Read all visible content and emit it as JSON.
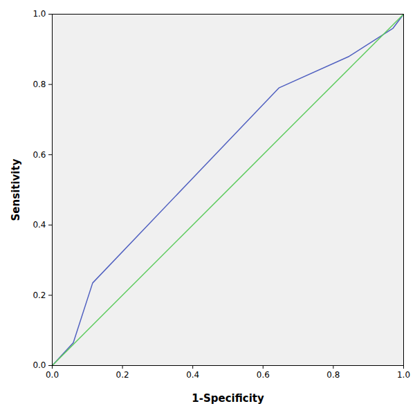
{
  "chart_data": {
    "type": "line",
    "x_label": "1-Specificity",
    "y_label": "Sensitivity",
    "x": [
      0,
      0.06,
      0.115,
      0.645,
      0.845,
      0.97,
      1
    ],
    "series": [
      {
        "color": "#5060c0",
        "values": [
          0,
          0.065,
          0.235,
          0.79,
          0.88,
          0.96,
          1
        ]
      },
      {
        "color": "#5ccb5c",
        "values": [
          0,
          0.06,
          0.115,
          0.645,
          0.845,
          0.97,
          1
        ]
      }
    ],
    "xlim": [
      0,
      1
    ],
    "ylim": [
      0,
      1
    ],
    "xticks": [
      {
        "value": 0,
        "label": "0.0"
      },
      {
        "value": 0.2,
        "label": "0.2"
      },
      {
        "value": 0.4,
        "label": "0.4"
      },
      {
        "value": 0.6,
        "label": "0.6"
      },
      {
        "value": 0.8,
        "label": "0.8"
      },
      {
        "value": 1,
        "label": "1.0"
      }
    ],
    "yticks": [
      {
        "value": 0,
        "label": "0.0"
      },
      {
        "value": 0.2,
        "label": "0.2"
      },
      {
        "value": 0.4,
        "label": "0.4"
      },
      {
        "value": 0.6,
        "label": "0.6"
      },
      {
        "value": 0.8,
        "label": "0.8"
      },
      {
        "value": 1,
        "label": "1.0"
      }
    ],
    "grid": false
  }
}
